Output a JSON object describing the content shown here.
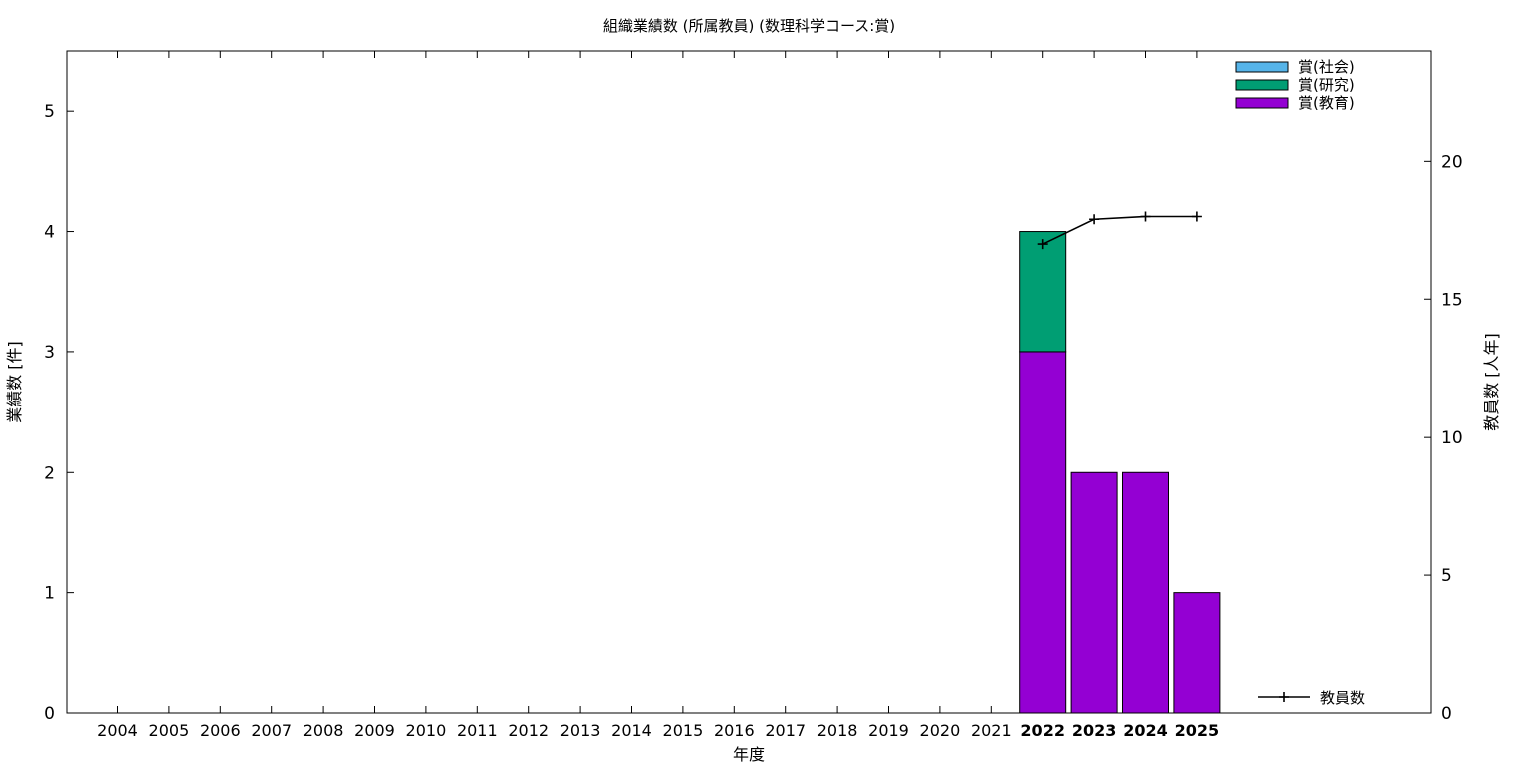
{
  "chart_data": {
    "type": "bar",
    "title": "組織業績数 (所属教員) (数理科学コース:賞)",
    "xlabel": "年度",
    "ylabel": "業績数 [件]",
    "y2label": "教員数 [人年]",
    "categories": [
      "2004",
      "2005",
      "2006",
      "2007",
      "2008",
      "2009",
      "2010",
      "2011",
      "2012",
      "2013",
      "2014",
      "2015",
      "2016",
      "2017",
      "2018",
      "2019",
      "2020",
      "2021",
      "2022",
      "2023",
      "2024",
      "2025"
    ],
    "ylim": [
      0,
      5.5
    ],
    "y_ticks": [
      0,
      1,
      2,
      3,
      4,
      5
    ],
    "y2lim": [
      0,
      24
    ],
    "y2_ticks": [
      0,
      5,
      10,
      15,
      20
    ],
    "stacked": true,
    "series": [
      {
        "name": "賞(教育)",
        "color": "#9400d3",
        "values": [
          0,
          0,
          0,
          0,
          0,
          0,
          0,
          0,
          0,
          0,
          0,
          0,
          0,
          0,
          0,
          0,
          0,
          0,
          3,
          2,
          2,
          1
        ]
      },
      {
        "name": "賞(研究)",
        "color": "#009e73",
        "values": [
          0,
          0,
          0,
          0,
          0,
          0,
          0,
          0,
          0,
          0,
          0,
          0,
          0,
          0,
          0,
          0,
          0,
          0,
          1,
          0,
          0,
          0
        ]
      },
      {
        "name": "賞(社会)",
        "color": "#56b4e9",
        "values": [
          0,
          0,
          0,
          0,
          0,
          0,
          0,
          0,
          0,
          0,
          0,
          0,
          0,
          0,
          0,
          0,
          0,
          0,
          0,
          0,
          0,
          0
        ]
      }
    ],
    "line_series": {
      "name": "教員数",
      "color": "#000000",
      "axis": "right",
      "x": [
        "2022",
        "2023",
        "2024",
        "2025"
      ],
      "values": [
        17,
        17.9,
        18,
        18
      ]
    },
    "legend_top_order": [
      "賞(社会)",
      "賞(研究)",
      "賞(教育)"
    ],
    "legend_placement": "top-right",
    "line_legend_placement": "bottom-right",
    "bold_categories": [
      "2022",
      "2023",
      "2024",
      "2025"
    ],
    "grid": false
  }
}
